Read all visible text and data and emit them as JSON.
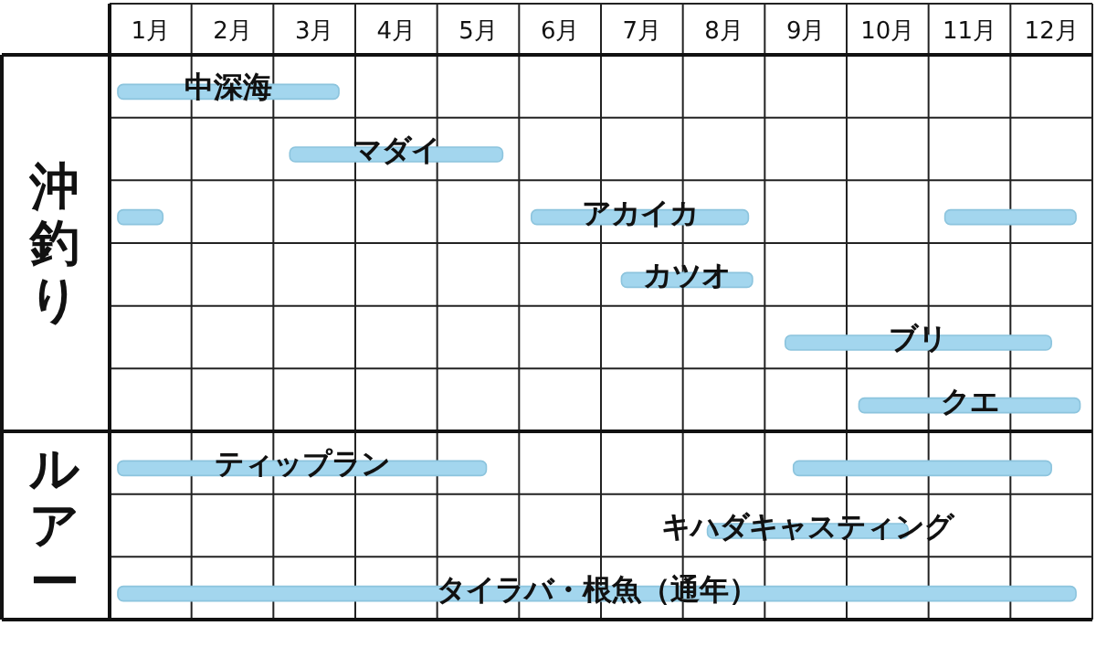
{
  "chart_data": {
    "type": "bar",
    "orientation": "horizontal",
    "grid": true,
    "categories": [
      "中深海",
      "マダイ",
      "アカイカ",
      "カツオ",
      "ブリ",
      "クエ",
      "ティップラン",
      "キハダキャスティング",
      "タイラバ・根魚（通年）"
    ],
    "xlim": [
      0,
      12
    ],
    "xticks": [
      {
        "value": 0.5,
        "label": "1月"
      },
      {
        "value": 1.5,
        "label": "2月"
      },
      {
        "value": 2.5,
        "label": "3月"
      },
      {
        "value": 3.5,
        "label": "4月"
      },
      {
        "value": 4.5,
        "label": "5月"
      },
      {
        "value": 5.5,
        "label": "6月"
      },
      {
        "value": 6.5,
        "label": "7月"
      },
      {
        "value": 7.5,
        "label": "8月"
      },
      {
        "value": 8.5,
        "label": "9月"
      },
      {
        "value": 9.5,
        "label": "10月"
      },
      {
        "value": 10.5,
        "label": "11月"
      },
      {
        "value": 11.5,
        "label": "12月"
      }
    ],
    "series": [
      {
        "color": "#a3d6ee",
        "base": [
          0.1,
          2.2,
          0.1,
          6.25,
          8.25,
          9.15,
          0.1,
          7.3,
          0.1
        ],
        "values": [
          2.7,
          2.6,
          0.55,
          1.6,
          3.25,
          2.7,
          4.5,
          2.45,
          11.7
        ]
      },
      {
        "color": "#a3d6ee",
        "base": [
          null,
          null,
          5.15,
          null,
          null,
          null,
          8.35,
          null,
          null
        ],
        "values": [
          null,
          null,
          2.65,
          null,
          null,
          null,
          3.15,
          null,
          null
        ]
      },
      {
        "color": "#a3d6ee",
        "base": [
          null,
          null,
          10.2,
          null,
          null,
          null,
          null,
          null,
          null
        ],
        "values": [
          null,
          null,
          1.6,
          null,
          null,
          null,
          null,
          null,
          null
        ]
      }
    ],
    "annotations": [
      "沖釣り",
      "ルアー"
    ]
  }
}
